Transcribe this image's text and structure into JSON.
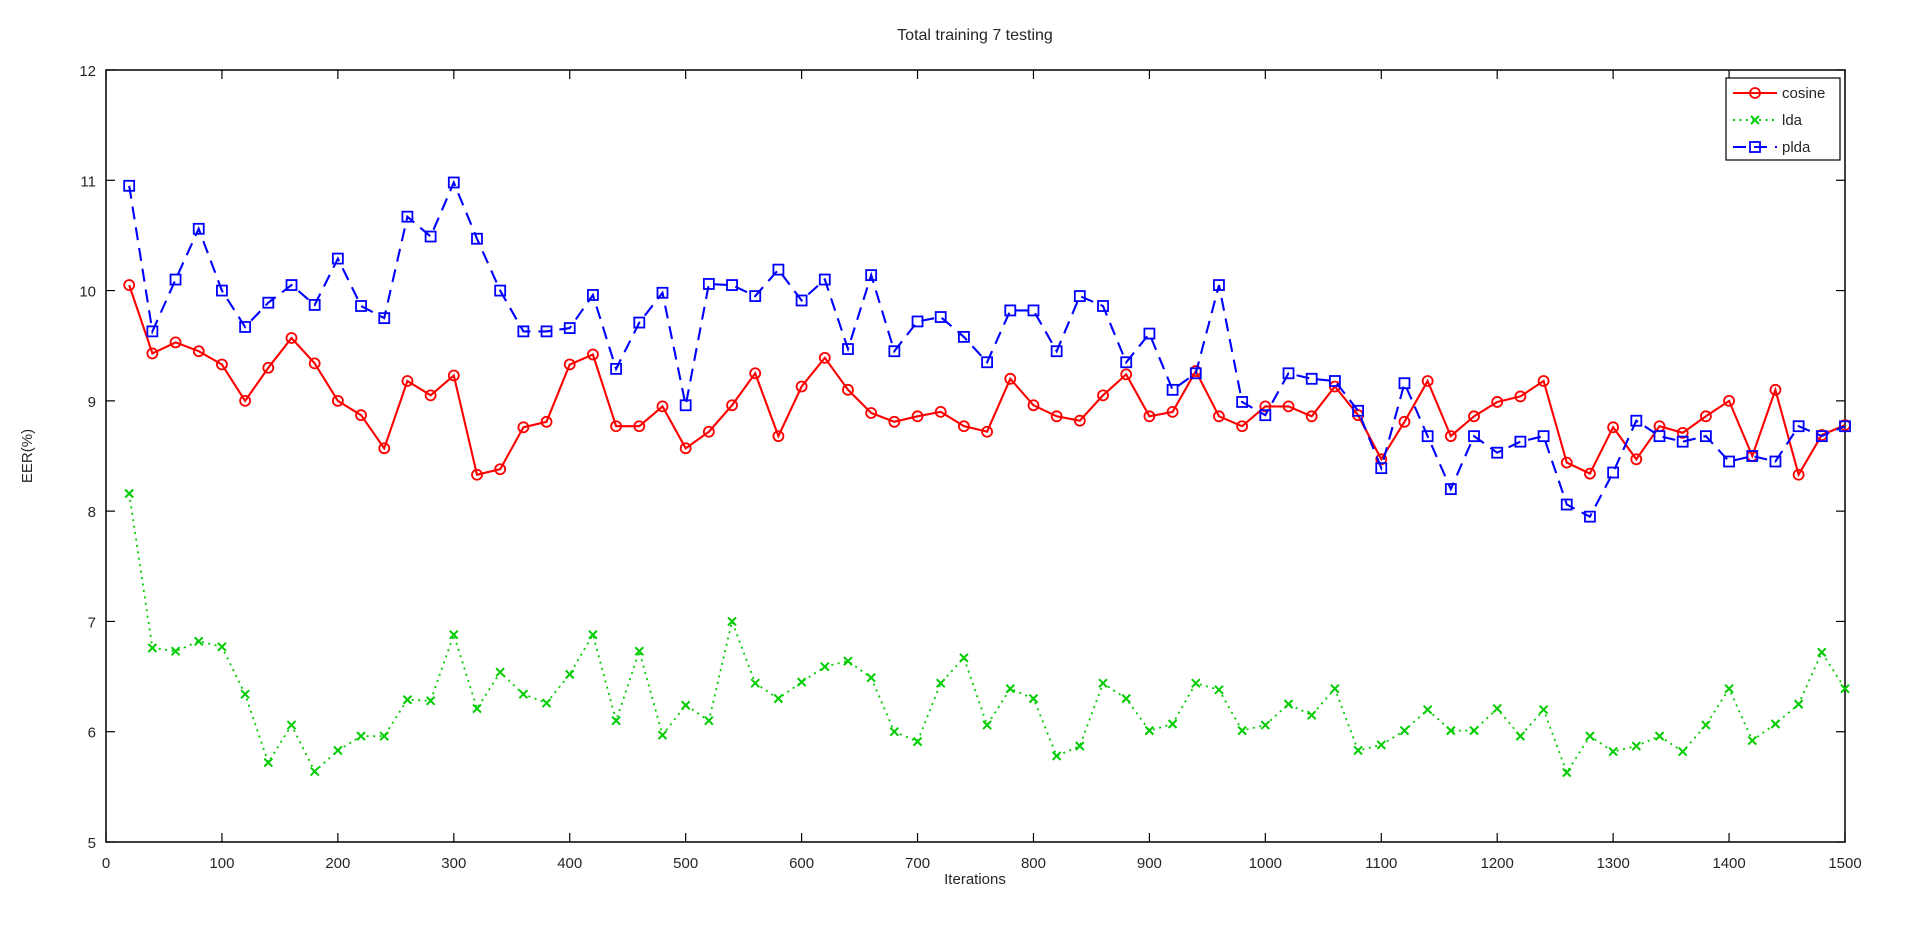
{
  "figure": {
    "background_color": "#ffffff",
    "axis_color": "#000000",
    "text_color": "#262626"
  },
  "chart_data": {
    "type": "line",
    "title": "Total training 7 testing",
    "xlabel": "Iterations",
    "ylabel": "EER(%)",
    "xlim": [
      0,
      1500
    ],
    "ylim": [
      5,
      12
    ],
    "xticks": [
      0,
      100,
      200,
      300,
      400,
      500,
      600,
      700,
      800,
      900,
      1000,
      1100,
      1200,
      1300,
      1400,
      1500
    ],
    "yticks": [
      5,
      6,
      7,
      8,
      9,
      10,
      11,
      12
    ],
    "grid": false,
    "legend_position": "top-right",
    "x": [
      20,
      40,
      60,
      80,
      100,
      120,
      140,
      160,
      180,
      200,
      220,
      240,
      260,
      280,
      300,
      320,
      340,
      360,
      380,
      400,
      420,
      440,
      460,
      480,
      500,
      520,
      540,
      560,
      580,
      600,
      620,
      640,
      660,
      680,
      700,
      720,
      740,
      760,
      780,
      800,
      820,
      840,
      860,
      880,
      900,
      920,
      940,
      960,
      980,
      1000,
      1020,
      1040,
      1060,
      1080,
      1100,
      1120,
      1140,
      1160,
      1180,
      1200,
      1220,
      1240,
      1260,
      1280,
      1300,
      1320,
      1340,
      1360,
      1380,
      1400,
      1420,
      1440,
      1460,
      1480,
      1500
    ],
    "series": [
      {
        "name": "cosine",
        "color": "#ff0000",
        "line_style": "solid",
        "marker": "circle",
        "values": [
          10.05,
          9.43,
          9.53,
          9.45,
          9.33,
          9.0,
          9.3,
          9.57,
          9.34,
          9.0,
          8.87,
          8.57,
          9.18,
          9.05,
          9.23,
          8.33,
          8.38,
          8.76,
          8.81,
          9.33,
          9.42,
          8.77,
          8.77,
          8.95,
          8.57,
          8.72,
          8.96,
          9.25,
          8.68,
          9.13,
          9.39,
          9.1,
          8.89,
          8.81,
          8.86,
          8.9,
          8.77,
          8.72,
          9.2,
          8.96,
          8.86,
          8.82,
          9.05,
          9.24,
          8.86,
          8.9,
          9.27,
          8.86,
          8.77,
          8.95,
          8.95,
          8.86,
          9.13,
          8.87,
          8.47,
          8.81,
          9.18,
          8.68,
          8.86,
          8.99,
          9.04,
          9.18,
          8.44,
          8.34,
          8.76,
          8.47,
          8.77,
          8.71,
          8.86,
          9.0,
          8.5,
          9.1,
          8.33,
          8.69,
          8.78
        ]
      },
      {
        "name": "lda",
        "color": "#00cc00",
        "line_style": "dotted",
        "marker": "x",
        "values": [
          8.16,
          6.76,
          6.73,
          6.82,
          6.77,
          6.34,
          5.72,
          6.06,
          5.64,
          5.83,
          5.96,
          5.96,
          6.29,
          6.28,
          6.88,
          6.21,
          6.54,
          6.34,
          6.26,
          6.52,
          6.88,
          6.1,
          6.73,
          5.97,
          6.24,
          6.1,
          7.0,
          6.44,
          6.3,
          6.45,
          6.59,
          6.64,
          6.49,
          6.0,
          5.91,
          6.44,
          6.67,
          6.06,
          6.39,
          6.3,
          5.78,
          5.87,
          6.44,
          6.3,
          6.01,
          6.07,
          6.44,
          6.38,
          6.01,
          6.06,
          6.25,
          6.15,
          6.39,
          5.83,
          5.88,
          6.01,
          6.2,
          6.01,
          6.01,
          6.21,
          5.96,
          6.2,
          5.63,
          5.96,
          5.82,
          5.87,
          5.96,
          5.82,
          6.06,
          6.39,
          5.92,
          6.07,
          6.25,
          6.72,
          6.39
        ]
      },
      {
        "name": "plda",
        "color": "#0000ff",
        "line_style": "dashed",
        "marker": "square",
        "values": [
          10.95,
          9.63,
          10.1,
          10.56,
          10.0,
          9.67,
          9.89,
          10.05,
          9.87,
          10.29,
          9.86,
          9.75,
          10.67,
          10.49,
          10.98,
          10.47,
          10.0,
          9.63,
          9.63,
          9.66,
          9.96,
          9.29,
          9.71,
          9.98,
          8.96,
          10.06,
          10.05,
          9.95,
          10.19,
          9.91,
          10.1,
          9.47,
          10.14,
          9.45,
          9.72,
          9.76,
          9.58,
          9.35,
          9.82,
          9.82,
          9.45,
          9.95,
          9.86,
          9.35,
          9.61,
          9.1,
          9.25,
          10.05,
          8.99,
          8.87,
          9.25,
          9.2,
          9.18,
          8.91,
          8.39,
          9.16,
          8.68,
          8.2,
          8.68,
          8.53,
          8.63,
          8.68,
          8.06,
          7.95,
          8.35,
          8.82,
          8.68,
          8.63,
          8.68,
          8.45,
          8.5,
          8.45,
          8.77,
          8.68,
          8.77
        ]
      }
    ]
  }
}
